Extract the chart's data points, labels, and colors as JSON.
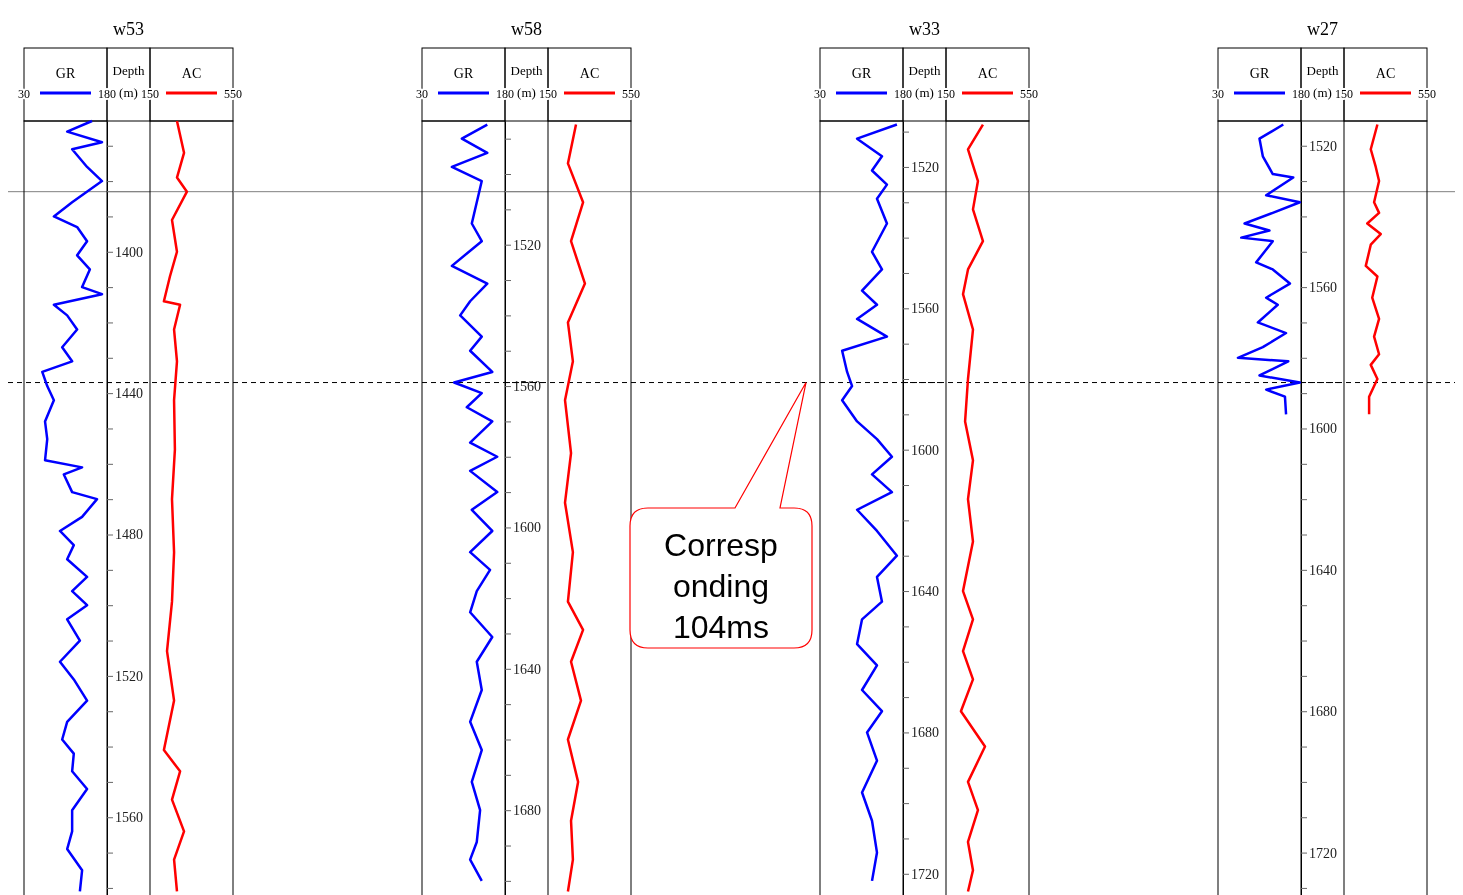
{
  "chart_data": [
    {
      "type": "line",
      "title": "w53",
      "ylabel": "Depth (m)",
      "legend": "top",
      "xlim": [
        30,
        180
      ],
      "xticks": [
        30,
        180
      ],
      "ylim": [
        1582,
        1363
      ],
      "yticks": [
        {
          "value": 1370,
          "label": null
        },
        {
          "value": 1380,
          "label": null
        },
        {
          "value": 1390,
          "label": null
        },
        1400,
        {
          "value": 1410,
          "label": null
        },
        {
          "value": 1420,
          "label": null
        },
        {
          "value": 1430,
          "label": null
        },
        1440,
        {
          "value": 1450,
          "label": null
        },
        {
          "value": 1460,
          "label": null
        },
        {
          "value": 1470,
          "label": null
        },
        1480,
        {
          "value": 1490,
          "label": null
        },
        {
          "value": 1500,
          "label": null
        },
        {
          "value": 1510,
          "label": null
        },
        1520,
        {
          "value": 1530,
          "label": null
        },
        {
          "value": 1540,
          "label": null
        },
        {
          "value": 1550,
          "label": null
        },
        1560,
        {
          "value": 1570,
          "label": null
        },
        {
          "value": 1580,
          "label": null
        }
      ],
      "ref_lines": [
        {
          "axis": "y",
          "value": 1383,
          "color": "#808080",
          "line_style": "solid"
        },
        {
          "axis": "y",
          "value": 1437,
          "color": "#000000",
          "line_style": "dashed"
        }
      ],
      "series": [
        {
          "name": "GR",
          "color": "#0000ff",
          "x": [
            153,
            108,
            171,
            117,
            144,
            171,
            117,
            84,
            126,
            144,
            126,
            149,
            135,
            171,
            84,
            108,
            126,
            99,
            117,
            63,
            72,
            84,
            68,
            72,
            68,
            135,
            102,
            117,
            162,
            135,
            95,
            120,
            108,
            144,
            117,
            144,
            108,
            131,
            95,
            120,
            144,
            108,
            99,
            120,
            117,
            144,
            117,
            117,
            108,
            135,
            131
          ],
          "values": [
            1363,
            1366,
            1369,
            1371,
            1376,
            1380,
            1386,
            1390,
            1393,
            1397,
            1401,
            1405,
            1410,
            1412,
            1415,
            1418,
            1422,
            1427,
            1431,
            1434,
            1438,
            1442,
            1448,
            1453,
            1459,
            1461,
            1463,
            1468,
            1470,
            1475,
            1479,
            1483,
            1487,
            1492,
            1496,
            1500,
            1504,
            1510,
            1516,
            1521,
            1527,
            1533,
            1538,
            1542,
            1547,
            1552,
            1558,
            1564,
            1569,
            1575,
            1581
          ]
        }
      ]
    },
    {
      "type": "line",
      "legend": "top",
      "xlim": [
        150,
        550
      ],
      "xticks": [
        150,
        550
      ],
      "ylim": [
        1582,
        1363
      ],
      "tick_labels": "x",
      "ref_lines": [
        {
          "axis": "y",
          "value": 1383,
          "color": "#808080",
          "line_style": "solid"
        },
        {
          "axis": "y",
          "value": 1437,
          "color": "#000000",
          "line_style": "dashed"
        }
      ],
      "series": [
        {
          "name": "AC",
          "color": "#ff0000",
          "x": [
            280,
            314,
            280,
            328,
            256,
            280,
            246,
            217,
            295,
            266,
            280,
            266,
            270,
            256,
            266,
            256,
            232,
            266,
            217,
            295,
            256,
            314,
            266,
            280
          ],
          "values": [
            1363,
            1372,
            1379,
            1383,
            1391,
            1400,
            1407,
            1414,
            1415,
            1422,
            1431,
            1442,
            1456,
            1470,
            1485,
            1499,
            1513,
            1527,
            1541,
            1547,
            1555,
            1564,
            1572,
            1581
          ]
        }
      ]
    },
    {
      "type": "line",
      "title": "w58",
      "ylabel": "Depth (m)",
      "legend": "top",
      "xlim": [
        30,
        180
      ],
      "xticks": [
        30,
        180
      ],
      "ylim": [
        1704,
        1485
      ],
      "yticks": [
        {
          "value": 1490,
          "label": null
        },
        {
          "value": 1500,
          "label": null
        },
        {
          "value": 1510,
          "label": null
        },
        1520,
        {
          "value": 1530,
          "label": null
        },
        {
          "value": 1540,
          "label": null
        },
        {
          "value": 1550,
          "label": null
        },
        1560,
        {
          "value": 1570,
          "label": null
        },
        {
          "value": 1580,
          "label": null
        },
        {
          "value": 1590,
          "label": null
        },
        1600,
        {
          "value": 1610,
          "label": null
        },
        {
          "value": 1620,
          "label": null
        },
        {
          "value": 1630,
          "label": null
        },
        1640,
        {
          "value": 1650,
          "label": null
        },
        {
          "value": 1660,
          "label": null
        },
        {
          "value": 1670,
          "label": null
        },
        1680,
        {
          "value": 1690,
          "label": null
        },
        {
          "value": 1700,
          "label": null
        }
      ],
      "ref_lines": [
        {
          "axis": "y",
          "value": 1505,
          "color": "#808080",
          "line_style": "solid"
        },
        {
          "axis": "y",
          "value": 1559,
          "color": "#000000",
          "line_style": "dashed"
        }
      ],
      "series": [
        {
          "name": "GR",
          "color": "#0000ff",
          "x": [
            148,
            102,
            148,
            84,
            138,
            129,
            120,
            138,
            84,
            148,
            117,
            99,
            138,
            117,
            157,
            88,
            138,
            111,
            157,
            117,
            166,
            117,
            166,
            120,
            157,
            117,
            153,
            129,
            117,
            157,
            129,
            138,
            117,
            138,
            120,
            135,
            129,
            117,
            138
          ],
          "values": [
            1486,
            1490,
            1494,
            1498,
            1502,
            1508,
            1514,
            1519,
            1526,
            1531,
            1536,
            1540,
            1546,
            1550,
            1556,
            1559,
            1562,
            1566,
            1570,
            1576,
            1580,
            1584,
            1590,
            1595,
            1601,
            1607,
            1612,
            1618,
            1624,
            1631,
            1638,
            1646,
            1655,
            1663,
            1672,
            1680,
            1689,
            1694,
            1700
          ]
        }
      ]
    },
    {
      "type": "line",
      "legend": "top",
      "xlim": [
        150,
        550
      ],
      "xticks": [
        150,
        550
      ],
      "ylim": [
        1704,
        1485
      ],
      "tick_labels": "x",
      "ref_lines": [
        {
          "axis": "y",
          "value": 1505,
          "color": "#808080",
          "line_style": "solid"
        },
        {
          "axis": "y",
          "value": 1559,
          "color": "#000000",
          "line_style": "dashed"
        }
      ],
      "series": [
        {
          "name": "AC",
          "color": "#ff0000",
          "x": [
            285,
            246,
            319,
            261,
            328,
            246,
            270,
            232,
            261,
            232,
            270,
            246,
            319,
            261,
            309,
            246,
            295,
            261,
            270,
            246
          ],
          "values": [
            1486,
            1497,
            1508,
            1519,
            1531,
            1542,
            1553,
            1564,
            1579,
            1593,
            1607,
            1621,
            1629,
            1638,
            1649,
            1660,
            1672,
            1683,
            1694,
            1703
          ]
        }
      ]
    },
    {
      "type": "line",
      "title": "w33",
      "ylabel": "Depth (m)",
      "legend": "top",
      "xlim": [
        30,
        180
      ],
      "xticks": [
        30,
        180
      ],
      "ylim": [
        1726,
        1507
      ],
      "yticks": [
        {
          "value": 1510,
          "label": null
        },
        1520,
        {
          "value": 1530,
          "label": null
        },
        {
          "value": 1540,
          "label": null
        },
        {
          "value": 1550,
          "label": null
        },
        1560,
        {
          "value": 1570,
          "label": null
        },
        {
          "value": 1580,
          "label": null
        },
        {
          "value": 1590,
          "label": null
        },
        1600,
        {
          "value": 1610,
          "label": null
        },
        {
          "value": 1620,
          "label": null
        },
        {
          "value": 1630,
          "label": null
        },
        1640,
        {
          "value": 1650,
          "label": null
        },
        {
          "value": 1660,
          "label": null
        },
        {
          "value": 1670,
          "label": null
        },
        1680,
        {
          "value": 1690,
          "label": null
        },
        {
          "value": 1700,
          "label": null
        },
        {
          "value": 1710,
          "label": null
        },
        1720
      ],
      "ref_lines": [
        {
          "axis": "y",
          "value": 1527,
          "color": "#808080",
          "line_style": "solid"
        },
        {
          "axis": "y",
          "value": 1581,
          "color": "#000000",
          "line_style": "dashed"
        }
      ],
      "annotations": [
        "Corresponding 104ms"
      ],
      "series": [
        {
          "name": "GR",
          "color": "#0000ff",
          "x": [
            169,
            97,
            142,
            124,
            151,
            133,
            151,
            124,
            142,
            106,
            133,
            97,
            151,
            70,
            79,
            88,
            70,
            97,
            133,
            160,
            124,
            160,
            97,
            133,
            169,
            133,
            142,
            106,
            97,
            133,
            106,
            142,
            115,
            133,
            106,
            124,
            133,
            124
          ],
          "values": [
            1508,
            1512,
            1517,
            1521,
            1525,
            1529,
            1536,
            1544,
            1549,
            1555,
            1559,
            1563,
            1568,
            1572,
            1578,
            1582,
            1586,
            1592,
            1597,
            1602,
            1607,
            1612,
            1617,
            1623,
            1630,
            1636,
            1643,
            1648,
            1655,
            1661,
            1668,
            1674,
            1680,
            1688,
            1697,
            1705,
            1714,
            1722
          ]
        }
      ]
    },
    {
      "type": "line",
      "legend": "top",
      "xlim": [
        150,
        550
      ],
      "xticks": [
        150,
        550
      ],
      "ylim": [
        1726,
        1507
      ],
      "tick_labels": "x",
      "ref_lines": [
        {
          "axis": "y",
          "value": 1527,
          "color": "#808080",
          "line_style": "solid"
        },
        {
          "axis": "y",
          "value": 1581,
          "color": "#000000",
          "line_style": "dashed"
        }
      ],
      "series": [
        {
          "name": "AC",
          "color": "#ff0000",
          "x": [
            328,
            256,
            304,
            280,
            328,
            256,
            232,
            280,
            256,
            242,
            280,
            256,
            280,
            232,
            280,
            232,
            280,
            222,
            338,
            256,
            304,
            256,
            280,
            256
          ],
          "values": [
            1508,
            1515,
            1524,
            1532,
            1541,
            1549,
            1556,
            1566,
            1580,
            1592,
            1603,
            1614,
            1626,
            1640,
            1648,
            1657,
            1665,
            1674,
            1684,
            1694,
            1702,
            1711,
            1719,
            1725
          ]
        }
      ]
    },
    {
      "type": "line",
      "title": "w27",
      "ylabel": "Depth (m)",
      "legend": "top",
      "xlim": [
        30,
        180
      ],
      "xticks": [
        30,
        180
      ],
      "ylim": [
        1732,
        1513
      ],
      "yticks": [
        1520,
        {
          "value": 1530,
          "label": null
        },
        {
          "value": 1540,
          "label": null
        },
        {
          "value": 1550,
          "label": null
        },
        1560,
        {
          "value": 1570,
          "label": null
        },
        {
          "value": 1580,
          "label": null
        },
        {
          "value": 1590,
          "label": null
        },
        1600,
        {
          "value": 1610,
          "label": null
        },
        {
          "value": 1620,
          "label": null
        },
        {
          "value": 1630,
          "label": null
        },
        1640,
        {
          "value": 1650,
          "label": null
        },
        {
          "value": 1660,
          "label": null
        },
        {
          "value": 1670,
          "label": null
        },
        1680,
        {
          "value": 1690,
          "label": null
        },
        {
          "value": 1700,
          "label": null
        },
        {
          "value": 1710,
          "label": null
        },
        1720,
        {
          "value": 1730,
          "label": null
        }
      ],
      "ref_lines": [
        {
          "axis": "y",
          "value": 1533,
          "color": "#808080",
          "line_style": "solid"
        },
        {
          "axis": "y",
          "value": 1587,
          "color": "#000000",
          "line_style": "dashed"
        }
      ],
      "series": [
        {
          "name": "GR",
          "color": "#0000ff",
          "x": [
            148,
            105,
            111,
            129,
            166,
            117,
            178,
            129,
            78,
            123,
            72,
            129,
            99,
            129,
            160,
            117,
            138,
            102,
            153,
            111,
            66,
            157,
            105,
            178,
            117,
            151,
            153
          ],
          "values": [
            1514,
            1518,
            1523,
            1528,
            1529,
            1534,
            1536,
            1539,
            1542,
            1544,
            1546,
            1547,
            1553,
            1555,
            1559,
            1563,
            1565,
            1570,
            1573,
            1577,
            1580,
            1581,
            1585,
            1587,
            1589,
            1591,
            1596
          ]
        }
      ]
    },
    {
      "type": "line",
      "legend": "top",
      "xlim": [
        150,
        550
      ],
      "xticks": [
        150,
        550
      ],
      "ylim": [
        1732,
        1513
      ],
      "tick_labels": "x",
      "ref_lines": [
        {
          "axis": "y",
          "value": 1533,
          "color": "#808080",
          "line_style": "solid"
        },
        {
          "axis": "y",
          "value": 1587,
          "color": "#000000",
          "line_style": "dashed"
        }
      ],
      "series": [
        {
          "name": "AC",
          "color": "#ff0000",
          "x": [
            311,
            279,
            303,
            319,
            295,
            319,
            262,
            327,
            279,
            255,
            311,
            286,
            319,
            295,
            319,
            279,
            311,
            271,
            271
          ],
          "values": [
            1514,
            1521,
            1526,
            1530,
            1536,
            1539,
            1542,
            1545,
            1548,
            1554,
            1557,
            1563,
            1569,
            1574,
            1579,
            1582,
            1586,
            1591,
            1596
          ]
        }
      ]
    }
  ]
}
